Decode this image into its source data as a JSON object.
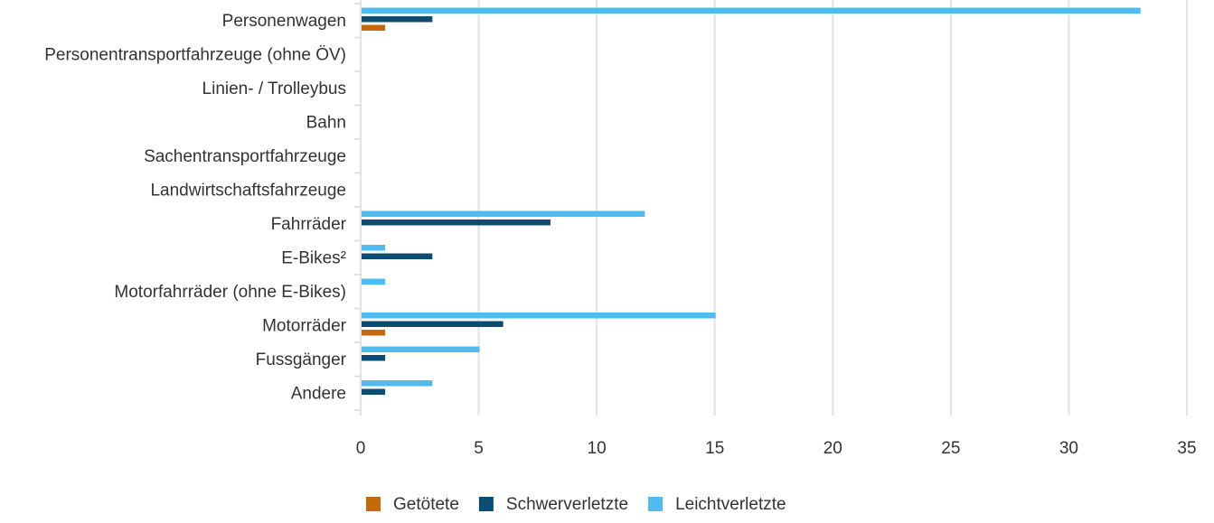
{
  "chart_data": {
    "type": "bar",
    "orientation": "horizontal",
    "categories": [
      "Personenwagen",
      "Personentransportfahrzeuge (ohne ÖV)",
      "Linien- / Trolleybus",
      "Bahn",
      "Sachentransportfahrzeuge",
      "Landwirtschaftsfahrzeuge",
      "Fahrräder",
      "E-Bikes²",
      "Motorfahrräder (ohne E-Bikes)",
      "Motorräder",
      "Fussgänger",
      "Andere"
    ],
    "series": [
      {
        "name": "Leichtverletzte",
        "color": "#4fbcf0",
        "values": [
          33,
          0,
          0,
          0,
          0,
          0,
          12,
          1,
          1,
          15,
          5,
          3
        ]
      },
      {
        "name": "Schwerverletzte",
        "color": "#0b4c72",
        "values": [
          3,
          0,
          0,
          0,
          0,
          0,
          8,
          3,
          0,
          6,
          1,
          1
        ]
      },
      {
        "name": "Getötete",
        "color": "#c46a0b",
        "values": [
          1,
          0,
          0,
          0,
          0,
          0,
          0,
          0,
          0,
          1,
          0,
          0
        ]
      }
    ],
    "xlim": [
      0,
      35
    ],
    "xticks": [
      "0",
      "5",
      "10",
      "15",
      "20",
      "25",
      "30",
      "35"
    ],
    "grid": "vertical",
    "legend": {
      "position": "bottom",
      "order": [
        "Getötete",
        "Schwerverletzte",
        "Leichtverletzte"
      ]
    }
  }
}
